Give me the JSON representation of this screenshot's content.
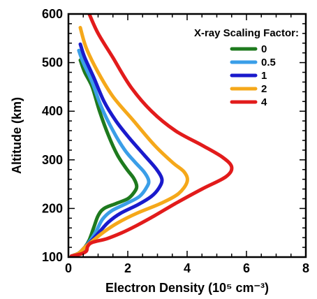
{
  "chart_data": {
    "type": "line",
    "xlabel": "Electron Density (10⁵ cm⁻³)",
    "ylabel": "Altitude (km)",
    "xlim": [
      0,
      8
    ],
    "ylim": [
      100,
      600
    ],
    "x_ticks": [
      "0",
      "2",
      "4",
      "6",
      "8"
    ],
    "y_ticks": [
      "100",
      "200",
      "300",
      "400",
      "500",
      "600"
    ],
    "grid": false,
    "legend_title": "X-ray Scaling Factor:",
    "legend_position": "top-right",
    "series": [
      {
        "name": "0",
        "color": "#1e7a1e",
        "points": [
          [
            0.1,
            102
          ],
          [
            0.35,
            108
          ],
          [
            0.55,
            120
          ],
          [
            0.7,
            135
          ],
          [
            0.85,
            160
          ],
          [
            1.0,
            185
          ],
          [
            1.2,
            200
          ],
          [
            1.6,
            210
          ],
          [
            2.0,
            220
          ],
          [
            2.2,
            232
          ],
          [
            2.3,
            245
          ],
          [
            2.2,
            262
          ],
          [
            1.95,
            282
          ],
          [
            1.65,
            310
          ],
          [
            1.35,
            350
          ],
          [
            1.05,
            400
          ],
          [
            0.8,
            450
          ],
          [
            0.55,
            480
          ],
          [
            0.4,
            505
          ]
        ]
      },
      {
        "name": "0.5",
        "color": "#3a9ee8",
        "points": [
          [
            0.1,
            102
          ],
          [
            0.35,
            108
          ],
          [
            0.55,
            120
          ],
          [
            0.75,
            135
          ],
          [
            0.95,
            155
          ],
          [
            1.15,
            178
          ],
          [
            1.45,
            195
          ],
          [
            1.95,
            210
          ],
          [
            2.4,
            225
          ],
          [
            2.65,
            245
          ],
          [
            2.7,
            258
          ],
          [
            2.55,
            275
          ],
          [
            2.25,
            295
          ],
          [
            1.9,
            320
          ],
          [
            1.5,
            360
          ],
          [
            1.1,
            410
          ],
          [
            0.8,
            460
          ],
          [
            0.5,
            500
          ],
          [
            0.35,
            525
          ]
        ]
      },
      {
        "name": "1",
        "color": "#1a1acc",
        "points": [
          [
            0.1,
            102
          ],
          [
            0.35,
            108
          ],
          [
            0.55,
            120
          ],
          [
            0.8,
            135
          ],
          [
            1.05,
            152
          ],
          [
            1.35,
            172
          ],
          [
            1.75,
            190
          ],
          [
            2.35,
            208
          ],
          [
            2.8,
            225
          ],
          [
            3.05,
            242
          ],
          [
            3.15,
            260
          ],
          [
            2.95,
            282
          ],
          [
            2.55,
            310
          ],
          [
            2.05,
            345
          ],
          [
            1.6,
            380
          ],
          [
            1.2,
            420
          ],
          [
            0.85,
            470
          ],
          [
            0.55,
            510
          ],
          [
            0.4,
            538
          ]
        ]
      },
      {
        "name": "2",
        "color": "#f5a81a",
        "points": [
          [
            0.1,
            102
          ],
          [
            0.35,
            108
          ],
          [
            0.55,
            120
          ],
          [
            0.85,
            135
          ],
          [
            1.2,
            152
          ],
          [
            1.65,
            170
          ],
          [
            2.3,
            190
          ],
          [
            3.1,
            210
          ],
          [
            3.7,
            230
          ],
          [
            4.0,
            255
          ],
          [
            3.9,
            275
          ],
          [
            3.5,
            295
          ],
          [
            2.9,
            330
          ],
          [
            2.2,
            380
          ],
          [
            1.5,
            430
          ],
          [
            1.0,
            480
          ],
          [
            0.6,
            530
          ],
          [
            0.4,
            572
          ]
        ]
      },
      {
        "name": "4",
        "color": "#e21b1b",
        "points": [
          [
            0.1,
            102
          ],
          [
            0.4,
            106
          ],
          [
            0.6,
            112
          ],
          [
            0.65,
            122
          ],
          [
            0.8,
            130
          ],
          [
            1.3,
            138
          ],
          [
            1.8,
            150
          ],
          [
            2.3,
            165
          ],
          [
            2.9,
            185
          ],
          [
            3.6,
            210
          ],
          [
            4.5,
            240
          ],
          [
            5.3,
            265
          ],
          [
            5.5,
            285
          ],
          [
            5.2,
            305
          ],
          [
            4.5,
            330
          ],
          [
            3.6,
            360
          ],
          [
            2.8,
            400
          ],
          [
            2.1,
            450
          ],
          [
            1.5,
            510
          ],
          [
            1.0,
            560
          ],
          [
            0.7,
            600
          ]
        ]
      }
    ]
  }
}
